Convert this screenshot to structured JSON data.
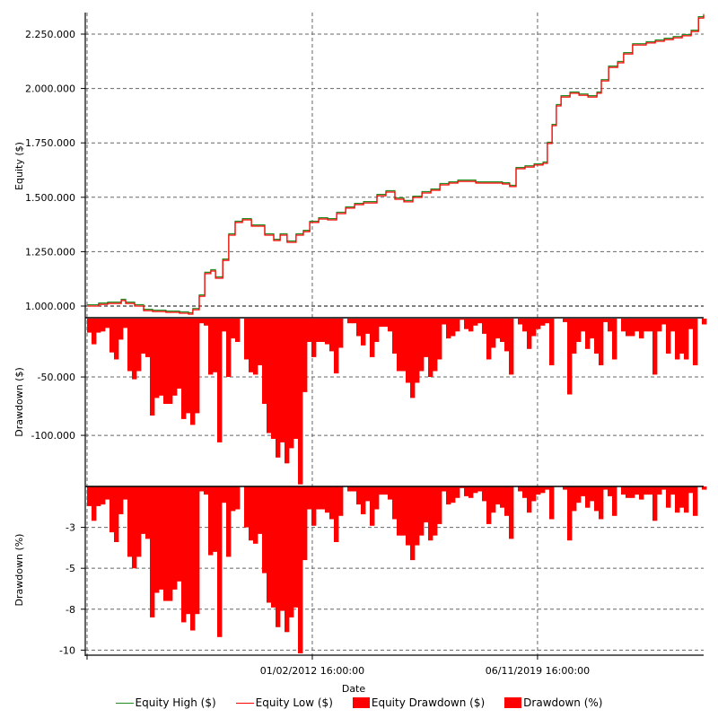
{
  "chart_data": [
    {
      "type": "line",
      "panel": "equity",
      "ylabel": "Equity ($)",
      "yticks": [
        {
          "value": 2250000,
          "label": "2.250.000"
        },
        {
          "value": 2000000,
          "label": "2.000.000"
        },
        {
          "value": 1750000,
          "label": "1.750.000"
        },
        {
          "value": 1500000,
          "label": "1.500.000"
        },
        {
          "value": 1250000,
          "label": "1.250.000"
        },
        {
          "value": 1000000,
          "label": "1.000.000"
        }
      ],
      "ylim": [
        950500,
        2349000
      ],
      "series": [
        {
          "name": "Equity High ($)",
          "color": "#228b22"
        },
        {
          "name": "Equity Low ($)",
          "color": "#ff0000"
        }
      ],
      "x": [
        2004.31,
        2004.71,
        2005.02,
        2005.49,
        2005.64,
        2005.95,
        2006.26,
        2006.57,
        2007.03,
        2007.5,
        2007.81,
        2007.96,
        2008.18,
        2008.37,
        2008.58,
        2008.74,
        2008.99,
        2009.2,
        2009.42,
        2009.67,
        2009.98,
        2010.29,
        2010.44,
        2010.75,
        2010.97,
        2011.21,
        2011.52,
        2011.77,
        2011.99,
        2012.3,
        2012.61,
        2012.92,
        2013.23,
        2013.54,
        2013.85,
        2014.31,
        2014.62,
        2014.93,
        2015.24,
        2015.55,
        2015.86,
        2016.17,
        2016.48,
        2016.79,
        2017.1,
        2017.41,
        2017.72,
        2018.18,
        2018.64,
        2018.89,
        2019.11,
        2019.42,
        2019.73,
        2020.04,
        2020.19,
        2020.35,
        2020.5,
        2020.66,
        2020.97,
        2021.28,
        2021.59,
        2021.9,
        2022.05,
        2022.3,
        2022.61,
        2022.82,
        2023.13,
        2023.6,
        2023.91,
        2024.22,
        2024.53,
        2024.84,
        2025.15,
        2025.4,
        2025.58
      ],
      "equity": [
        1000000,
        1008000,
        1012000,
        1025000,
        1012000,
        1000000,
        979000,
        975000,
        971000,
        967000,
        963000,
        983000,
        1045000,
        1149000,
        1161000,
        1128000,
        1210000,
        1326000,
        1384000,
        1396000,
        1367000,
        1367000,
        1326000,
        1301000,
        1326000,
        1293000,
        1326000,
        1342000,
        1384000,
        1400000,
        1396000,
        1425000,
        1450000,
        1466000,
        1474000,
        1507000,
        1524000,
        1491000,
        1479000,
        1499000,
        1520000,
        1532000,
        1557000,
        1565000,
        1573000,
        1573000,
        1565000,
        1565000,
        1561000,
        1549000,
        1631000,
        1639000,
        1648000,
        1656000,
        1747000,
        1829000,
        1920000,
        1961000,
        1978000,
        1969000,
        1961000,
        1978000,
        2035000,
        2097000,
        2118000,
        2159000,
        2200000,
        2209000,
        2217000,
        2225000,
        2233000,
        2242000,
        2262000,
        2324000,
        2337000
      ]
    },
    {
      "type": "area",
      "panel": "drawdown-dollars",
      "name": "Equity Drawdown ($)",
      "color": "#ff0000",
      "ylabel": "Drawdown ($)",
      "yticks": [
        {
          "value": -50000,
          "label": "-50.000"
        },
        {
          "value": -100000,
          "label": "-100.000"
        }
      ],
      "ylim": [
        -143000,
        0
      ],
      "x_start": 2004.31,
      "x_step": 0.1548,
      "values_thousands": [
        -12,
        -22,
        -12,
        -11,
        -8,
        -29,
        -35,
        -18,
        -8,
        -45,
        -52,
        -45,
        -30,
        -33,
        -83,
        -68,
        -66,
        -73,
        -73,
        -66,
        -60,
        -86,
        -81,
        -91,
        -81,
        -4,
        -6,
        -48,
        -46,
        -106,
        -11,
        -50,
        -17,
        -20,
        0,
        -35,
        -46,
        -48,
        -40,
        -73,
        -98,
        -103,
        -119,
        -106,
        -124,
        -111,
        -103,
        -142,
        -63,
        -20,
        -33,
        -20,
        -20,
        -22,
        -28,
        -47,
        -25,
        0,
        -4,
        -4,
        -15,
        -23,
        -13,
        -33,
        -20,
        -7,
        -7,
        -11,
        -30,
        -45,
        -45,
        -55,
        -68,
        -55,
        -45,
        -33,
        -50,
        -45,
        -35,
        -5,
        -17,
        -15,
        -11,
        -1,
        -9,
        -11,
        -6,
        -4,
        -13,
        -35,
        -25,
        -17,
        -20,
        -28,
        -48,
        0,
        -5,
        -11,
        -26,
        -15,
        -9,
        -6,
        -4,
        -40,
        0,
        0,
        -3,
        -65,
        -30,
        -20,
        -11,
        -26,
        -17,
        -30,
        -40,
        -3,
        -11,
        -35,
        0,
        -11,
        -15,
        -15,
        -11,
        -17,
        -11,
        -11,
        -48,
        -11,
        -5,
        -30,
        -11,
        -35,
        -30,
        -35,
        -9,
        -40,
        0,
        -5
      ]
    },
    {
      "type": "area",
      "panel": "drawdown-percent",
      "name": "Drawdown (%)",
      "color": "#ff0000",
      "ylabel": "Drawdown (%)",
      "yticks": [
        {
          "value": -2.5,
          "label": "-3"
        },
        {
          "value": -5,
          "label": "-5"
        },
        {
          "value": -7.5,
          "label": "-8"
        },
        {
          "value": -10,
          "label": "-10"
        }
      ],
      "ylim": [
        -10.2,
        0
      ],
      "x_start": 2004.31,
      "x_step": 0.1548,
      "values": [
        -1.2,
        -2.1,
        -1.2,
        -1.1,
        -0.8,
        -2.8,
        -3.4,
        -1.7,
        -0.8,
        -4.3,
        -5.0,
        -4.3,
        -2.9,
        -3.2,
        -8.0,
        -6.5,
        -6.3,
        -7.0,
        -7.0,
        -6.3,
        -5.8,
        -8.3,
        -7.8,
        -8.8,
        -7.8,
        -0.3,
        -0.5,
        -4.2,
        -4.0,
        -9.2,
        -1.0,
        -4.3,
        -1.5,
        -1.4,
        0,
        -2.5,
        -3.3,
        -3.5,
        -2.9,
        -5.3,
        -7.1,
        -7.4,
        -8.6,
        -7.6,
        -8.9,
        -8.0,
        -7.4,
        -10.2,
        -4.5,
        -1.4,
        -2.4,
        -1.4,
        -1.4,
        -1.6,
        -2.0,
        -3.4,
        -1.8,
        0,
        -0.3,
        -0.3,
        -1.1,
        -1.7,
        -0.9,
        -2.4,
        -1.4,
        -0.5,
        -0.5,
        -0.8,
        -2.0,
        -3.0,
        -3.0,
        -3.6,
        -4.5,
        -3.6,
        -3.0,
        -2.2,
        -3.3,
        -3.0,
        -2.3,
        -0.3,
        -1.1,
        -1.0,
        -0.7,
        -0.1,
        -0.6,
        -0.7,
        -0.4,
        -0.3,
        -0.9,
        -2.3,
        -1.6,
        -1.1,
        -1.3,
        -1.8,
        -3.2,
        0,
        -0.3,
        -0.7,
        -1.6,
        -0.9,
        -0.5,
        -0.4,
        -0.2,
        -2.0,
        0,
        0,
        -0.2,
        -3.3,
        -1.5,
        -1.0,
        -0.6,
        -1.3,
        -0.9,
        -1.5,
        -2.0,
        -0.2,
        -0.6,
        -1.8,
        0,
        -0.5,
        -0.7,
        -0.7,
        -0.5,
        -0.8,
        -0.5,
        -0.5,
        -2.1,
        -0.5,
        -0.2,
        -1.3,
        -0.5,
        -1.6,
        -1.3,
        -1.6,
        -0.4,
        -1.8,
        0,
        -0.2
      ]
    }
  ],
  "xaxis": {
    "label": "Date",
    "xlim": [
      2004.31,
      2025.58
    ],
    "ticks": [
      {
        "value": 2004.31,
        "label": ""
      },
      {
        "value": 2012.08,
        "label": "01/02/2012 16:00:00"
      },
      {
        "value": 2019.85,
        "label": "06/11/2019 16:00:00"
      }
    ]
  },
  "legend": {
    "position": "bottom",
    "items": [
      {
        "label": "Equity High ($)",
        "kind": "line",
        "color": "#228b22"
      },
      {
        "label": "Equity Low ($)",
        "kind": "line",
        "color": "#ff0000"
      },
      {
        "label": "Equity Drawdown ($)",
        "kind": "box",
        "color": "#ff0000"
      },
      {
        "label": "Drawdown (%)",
        "kind": "box",
        "color": "#ff0000"
      }
    ]
  }
}
